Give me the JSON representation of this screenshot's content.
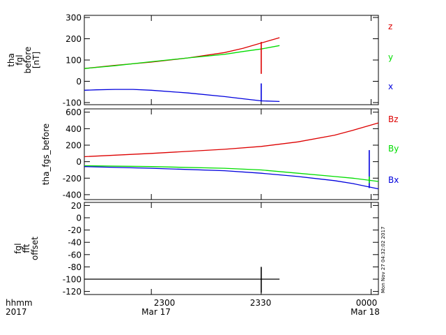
{
  "colors": {
    "red": "#dd0000",
    "green": "#00dd00",
    "blue": "#0000dd",
    "black": "#000000"
  },
  "time_axis": {
    "ticks": [
      {
        "value": "2300",
        "date": "Mar 17",
        "t_min": 40
      },
      {
        "value": "2330",
        "date": "Mar 17",
        "t_min": 70
      },
      {
        "value": "0000",
        "date": "Mar 18",
        "t_min": 100
      }
    ],
    "corner_label_1": "hhmm",
    "corner_label_2": "2017",
    "date_labels": [
      "Mar 17",
      "Mar 18"
    ]
  },
  "timestamp": "Mon Nov 27 04:32:02 2017",
  "chart_data": [
    {
      "type": "line",
      "name": "panel-fgl",
      "ylabel_lines": [
        "tha",
        "fgl",
        "before",
        "[nT]"
      ],
      "xlim": [
        21.7,
        102
      ],
      "ylim": [
        -110,
        310
      ],
      "yticks": [
        -100,
        0,
        100,
        200,
        300
      ],
      "series": [
        {
          "name": "z",
          "color": "red",
          "x": [
            21.7,
            30,
            40,
            50,
            60,
            65,
            70,
            75
          ],
          "y": [
            60,
            75,
            90,
            110,
            135,
            155,
            180,
            205
          ]
        },
        {
          "name": "y",
          "color": "green",
          "x": [
            21.7,
            30,
            40,
            50,
            60,
            65,
            70,
            75
          ],
          "y": [
            60,
            73,
            92,
            110,
            127,
            140,
            152,
            168
          ]
        },
        {
          "name": "x",
          "color": "blue",
          "x": [
            21.7,
            25,
            30,
            35,
            40,
            50,
            60,
            65,
            70,
            75
          ],
          "y": [
            -42,
            -40,
            -38,
            -38,
            -42,
            -55,
            -72,
            -82,
            -92,
            -95
          ]
        }
      ],
      "spikes": [
        {
          "color": "red",
          "x": 70,
          "y0": 35,
          "y1": 185
        },
        {
          "color": "blue",
          "x": 70,
          "y0": -95,
          "y1": -10
        }
      ],
      "legend": [
        "z",
        "y",
        "x"
      ],
      "legend_colors": [
        "red",
        "green",
        "blue"
      ]
    },
    {
      "type": "line",
      "name": "panel-fgs",
      "ylabel_lines": [
        "tha_fgs_before"
      ],
      "xlim": [
        21.7,
        102
      ],
      "ylim": [
        -460,
        640
      ],
      "yticks": [
        -400,
        -200,
        0,
        200,
        400,
        600
      ],
      "series": [
        {
          "name": "Bz",
          "color": "red",
          "x": [
            21.7,
            40,
            60,
            70,
            80,
            90,
            95,
            102
          ],
          "y": [
            60,
            100,
            150,
            185,
            240,
            320,
            380,
            470
          ]
        },
        {
          "name": "By",
          "color": "green",
          "x": [
            21.7,
            40,
            60,
            70,
            80,
            90,
            95,
            102
          ],
          "y": [
            -50,
            -60,
            -80,
            -100,
            -140,
            -180,
            -200,
            -240
          ]
        },
        {
          "name": "Bx",
          "color": "blue",
          "x": [
            21.7,
            40,
            60,
            70,
            80,
            90,
            95,
            102
          ],
          "y": [
            -60,
            -80,
            -110,
            -140,
            -180,
            -230,
            -265,
            -330
          ]
        }
      ],
      "spikes": [
        {
          "color": "blue",
          "x": 99.5,
          "y0": -320,
          "y1": 140
        },
        {
          "color": "green",
          "x": 99.5,
          "y0": -260,
          "y1": -180
        }
      ],
      "legend": [
        "Bz",
        "By",
        "Bx"
      ],
      "legend_colors": [
        "red",
        "green",
        "blue"
      ]
    },
    {
      "type": "line",
      "name": "panel-offset",
      "ylabel_lines": [
        "fgl",
        "fft",
        "offset"
      ],
      "xlim": [
        21.7,
        102
      ],
      "ylim": [
        -125,
        25
      ],
      "yticks": [
        -120,
        -100,
        -80,
        -60,
        -40,
        -20,
        0,
        20
      ],
      "series": [
        {
          "name": "offset",
          "color": "black",
          "x": [
            21.7,
            30,
            40,
            50,
            60,
            70,
            75
          ],
          "y": [
            -100,
            -100,
            -100,
            -100,
            -100,
            -100,
            -100
          ]
        }
      ],
      "spikes": [
        {
          "color": "black",
          "x": 70,
          "y0": -122,
          "y1": -80
        }
      ],
      "legend": [],
      "legend_colors": []
    }
  ]
}
